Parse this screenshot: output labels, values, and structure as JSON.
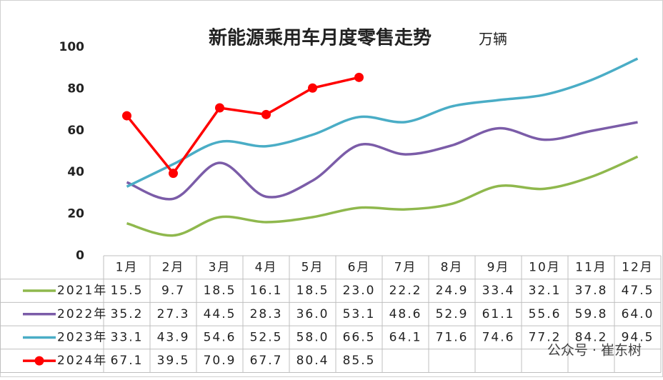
{
  "chart_data": {
    "type": "line",
    "title": "新能源乘用车月度零售走势",
    "unit": "万辆",
    "categories": [
      "1月",
      "2月",
      "3月",
      "4月",
      "5月",
      "6月",
      "7月",
      "8月",
      "9月",
      "10月",
      "11月",
      "12月"
    ],
    "ylim": [
      0,
      100
    ],
    "yticks": [
      0,
      20,
      40,
      60,
      80,
      100
    ],
    "grid": false,
    "series": [
      {
        "name": "2021年",
        "color": "#8fb84d",
        "smooth": true,
        "marker": false,
        "values": [
          15.5,
          9.7,
          18.5,
          16.1,
          18.5,
          23.0,
          22.2,
          24.9,
          33.4,
          32.1,
          37.8,
          47.5
        ],
        "value_labels": [
          "15.5",
          "9.7",
          "18.5",
          "16.1",
          "18.5",
          "23.0",
          "22.2",
          "24.9",
          "33.4",
          "32.1",
          "37.8",
          "47.5"
        ]
      },
      {
        "name": "2022年",
        "color": "#7b5ca8",
        "smooth": true,
        "marker": false,
        "values": [
          35.2,
          27.3,
          44.5,
          28.3,
          36.0,
          53.1,
          48.6,
          52.9,
          61.1,
          55.6,
          59.8,
          64.0
        ],
        "value_labels": [
          "35.2",
          "27.3",
          "44.5",
          "28.3",
          "36.0",
          "53.1",
          "48.6",
          "52.9",
          "61.1",
          "55.6",
          "59.8",
          "64.0"
        ]
      },
      {
        "name": "2023年",
        "color": "#4aadc6",
        "smooth": true,
        "marker": false,
        "values": [
          33.1,
          43.9,
          54.6,
          52.5,
          58.0,
          66.5,
          64.1,
          71.6,
          74.6,
          77.2,
          84.2,
          94.5
        ],
        "value_labels": [
          "33.1",
          "43.9",
          "54.6",
          "52.5",
          "58.0",
          "66.5",
          "64.1",
          "71.6",
          "74.6",
          "77.2",
          "84.2",
          "94.5"
        ]
      },
      {
        "name": "2024年",
        "color": "#ff0000",
        "smooth": false,
        "marker": true,
        "values": [
          67.1,
          39.5,
          70.9,
          67.7,
          80.4,
          85.5,
          null,
          null,
          null,
          null,
          null,
          null
        ],
        "value_labels": [
          "67.1",
          "39.5",
          "70.9",
          "67.7",
          "80.4",
          "85.5",
          null,
          null,
          null,
          null,
          null,
          null
        ]
      }
    ],
    "watermark": "公众号 · 崔东树"
  }
}
